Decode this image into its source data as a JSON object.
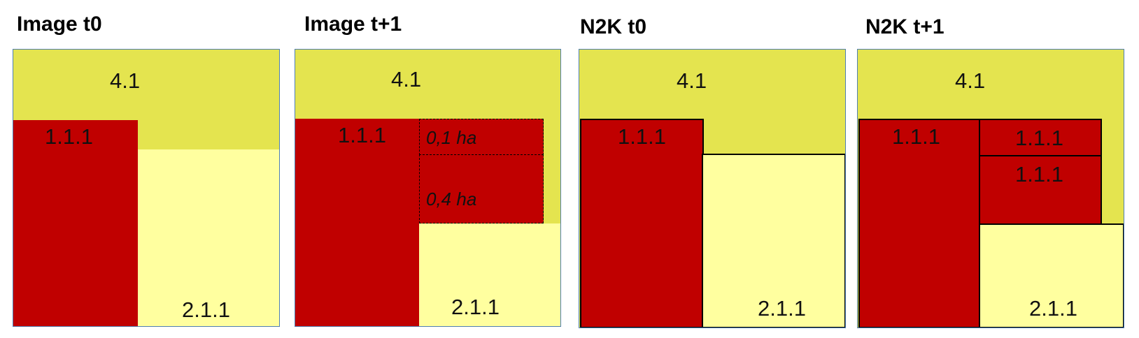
{
  "colors": {
    "yellow_green": "#e4e44f",
    "red": "#c00000",
    "pale_yellow": "#ffff9f",
    "panel_border": "#4f7fb2"
  },
  "panels": [
    {
      "title": "Image t0",
      "labels": {
        "z4": "4.1",
        "red": "1.1.1",
        "pale": "2.1.1"
      }
    },
    {
      "title": "Image t+1",
      "labels": {
        "z4": "4.1",
        "red": "1.1.1",
        "pale": "2.1.1",
        "patch_a": "0,1 ha",
        "patch_b": "0,4 ha"
      }
    },
    {
      "title": "N2K t0",
      "labels": {
        "z4": "4.1",
        "red": "1.1.1",
        "pale": "2.1.1"
      }
    },
    {
      "title": "N2K t+1",
      "labels": {
        "z4": "4.1",
        "red": "1.1.1",
        "pale": "2.1.1",
        "patch_a": "1.1.1",
        "patch_b": "1.1.1"
      }
    }
  ]
}
